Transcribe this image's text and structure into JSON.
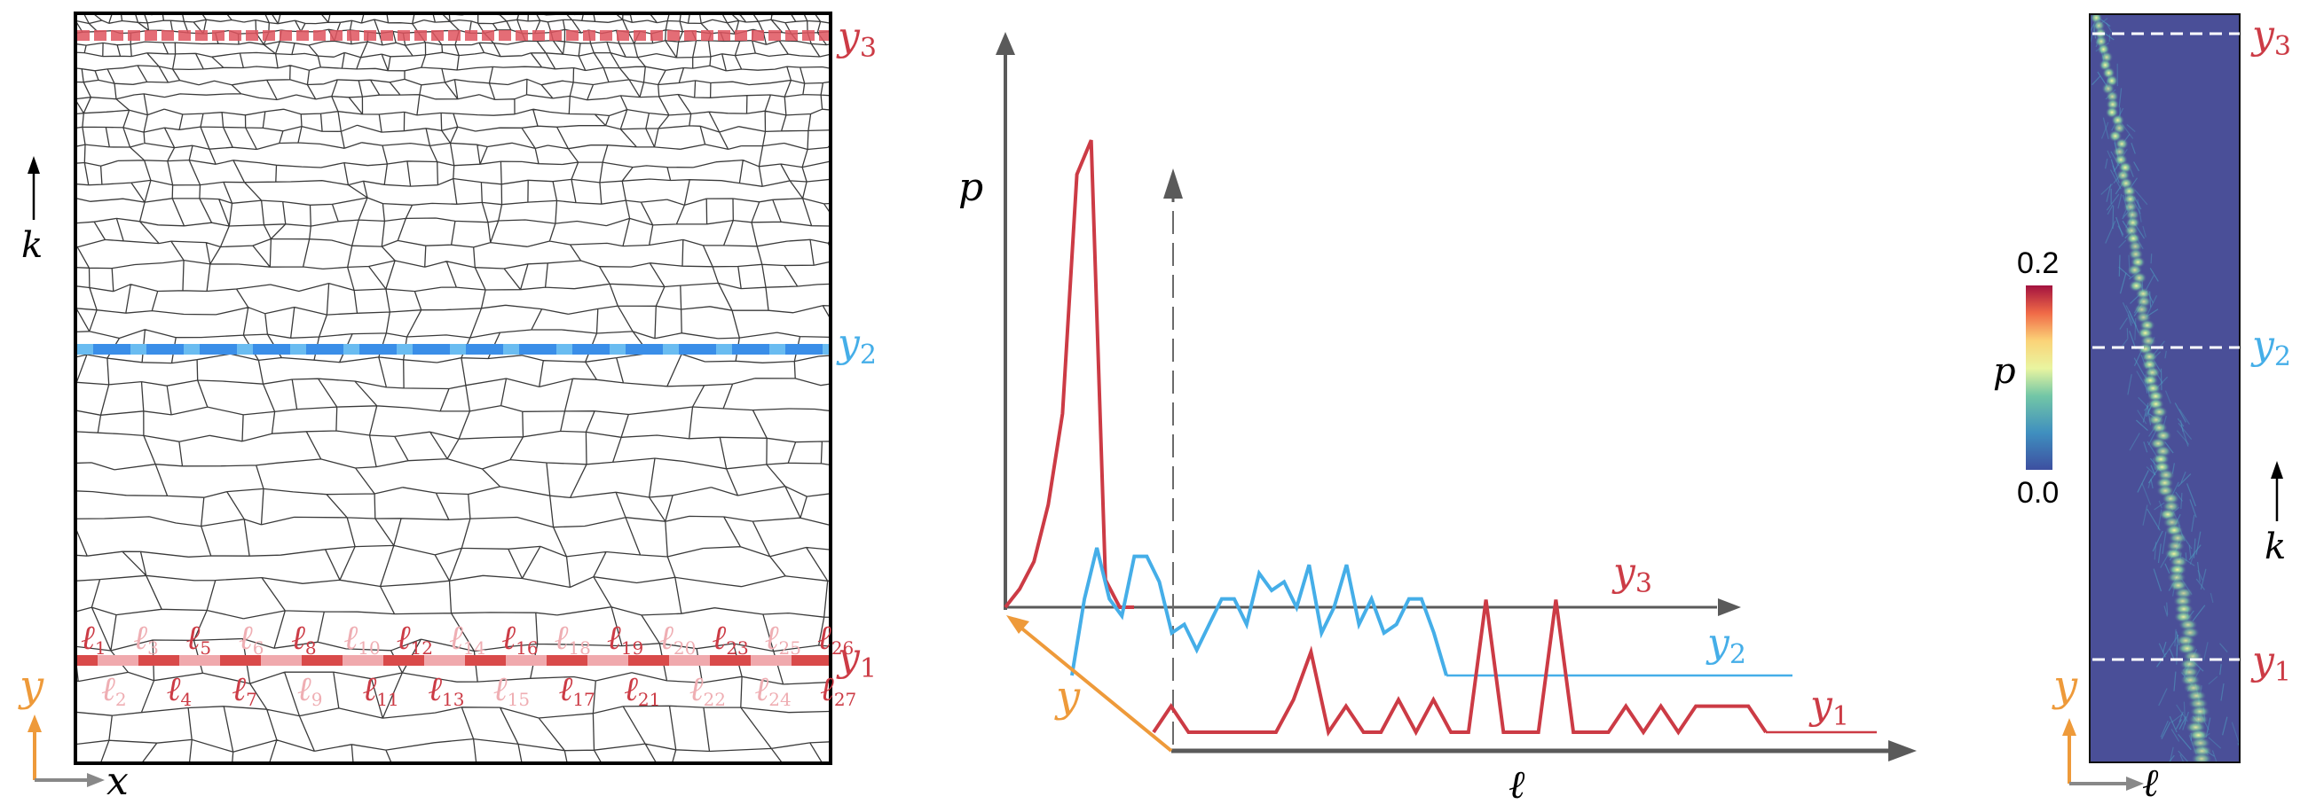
{
  "colors": {
    "red": "#cc3b45",
    "blue": "#45aee8",
    "orange": "#ee9a3a",
    "gray": "#5a5a5a",
    "mesh": "#3a3a3a",
    "heat_bg": "#4a4f98"
  },
  "panel_a": {
    "level_labels": {
      "y3": "y3",
      "y2": "y2",
      "y1": "y1"
    },
    "level_label_main": "y",
    "level_label_subs": {
      "y3": "3",
      "y2": "2",
      "y1": "1"
    },
    "k_label": "k",
    "x_label": "x",
    "y_label": "y",
    "edge_label_prefix": "ℓ",
    "edge_labels_top": [
      "1",
      "3",
      "5",
      "6",
      "8",
      "10",
      "12",
      "14",
      "16",
      "18",
      "19",
      "20",
      "23",
      "25",
      "26"
    ],
    "edge_labels_bottom": [
      "2",
      "4",
      "7",
      "9",
      "11",
      "13",
      "15",
      "17",
      "21",
      "22",
      "24",
      "27"
    ]
  },
  "panel_b": {
    "p_label": "p",
    "ell_label": "ℓ",
    "y_axis_label": "y",
    "series_labels": {
      "y3": "3",
      "y2": "2",
      "y1": "1"
    },
    "chart_data": {
      "type": "line",
      "title": "",
      "xlabel": "ℓ",
      "ylabel": "p",
      "series": [
        {
          "name": "y3",
          "values": [
            0.0,
            0.008,
            0.02,
            0.045,
            0.085,
            0.19,
            0.205,
            0.012,
            0.0,
            0.0
          ]
        },
        {
          "name": "y2",
          "values": [
            0.0,
            0.045,
            0.075,
            0.045,
            0.035,
            0.07,
            0.07,
            0.055,
            0.025,
            0.03,
            0.015,
            0.03,
            0.045,
            0.045,
            0.03,
            0.06,
            0.05,
            0.055,
            0.04,
            0.065,
            0.025,
            0.04,
            0.065,
            0.03,
            0.045,
            0.025,
            0.03,
            0.045,
            0.045,
            0.025,
            0.0
          ]
        },
        {
          "name": "y1",
          "values": [
            0.0,
            0.012,
            0.0,
            0.0,
            0.0,
            0.0,
            0.0,
            0.0,
            0.015,
            0.037,
            0.0,
            0.012,
            0.0,
            0.0,
            0.015,
            0.0,
            0.015,
            0.0,
            0.0,
            0.061,
            0.0,
            0.0,
            0.0,
            0.061,
            0.0,
            0.0,
            0.0,
            0.012,
            0.0,
            0.012,
            0.0,
            0.012,
            0.012,
            0.012,
            0.012,
            0.0
          ]
        }
      ]
    }
  },
  "panel_c": {
    "colorbar_max": "0.2",
    "colorbar_min": "0.0",
    "colorbar_label": "p",
    "k_label": "k",
    "y_label": "y",
    "ell_label": "ℓ",
    "level_labels": {
      "y3": "y3",
      "y2": "y2",
      "y1": "y1"
    }
  }
}
